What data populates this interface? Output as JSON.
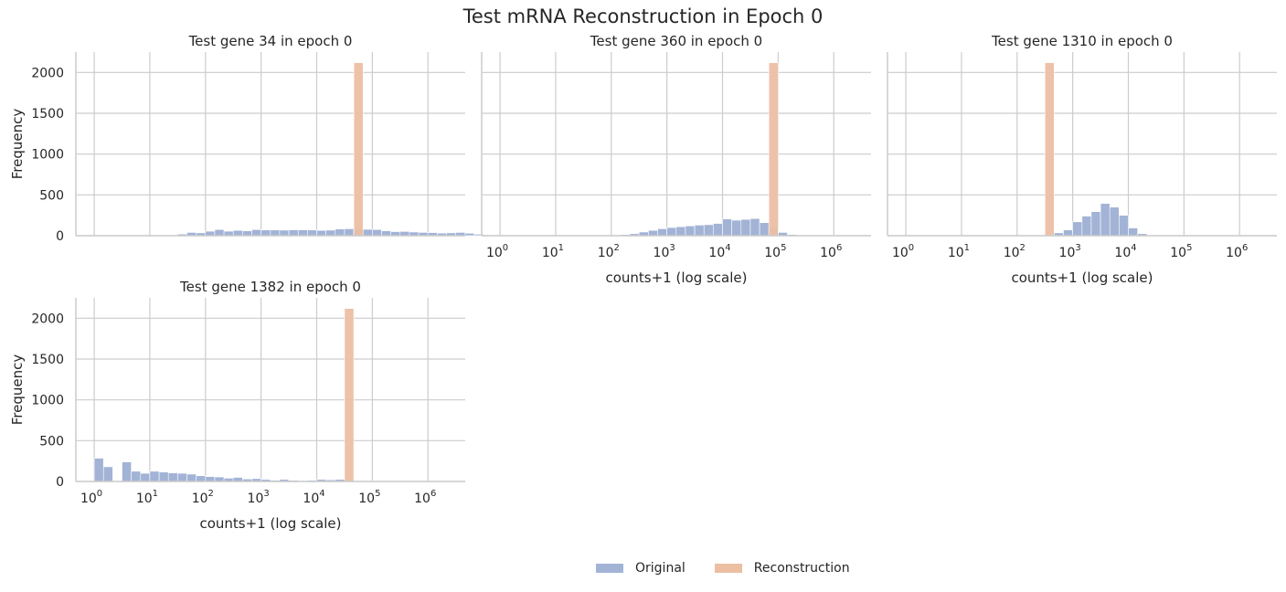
{
  "figure": {
    "title": "Test mRNA Reconstruction in Epoch 0",
    "legend": [
      {
        "label": "Original",
        "color": "#a2b3d6"
      },
      {
        "label": "Reconstruction",
        "color": "#ecbfa3"
      }
    ]
  },
  "chart_data": [
    {
      "type": "histogram",
      "title": "Test gene 34 in epoch 0",
      "ylabel": "Frequency",
      "xlabel": "",
      "xscale": "log",
      "ylim": [
        0,
        2250
      ],
      "yticks": [
        "0",
        "500",
        "1000",
        "1500",
        "2000"
      ],
      "xticks": [],
      "grid": true,
      "bin_log_width": 0.1667,
      "series": [
        {
          "name": "Original",
          "bins": [
            [
              1.0,
              0
            ],
            [
              1.5,
              20
            ],
            [
              1.667,
              40
            ],
            [
              1.833,
              35
            ],
            [
              2.0,
              55
            ],
            [
              2.167,
              75
            ],
            [
              2.333,
              55
            ],
            [
              2.5,
              65
            ],
            [
              2.667,
              60
            ],
            [
              2.833,
              75
            ],
            [
              3.0,
              70
            ],
            [
              3.167,
              70
            ],
            [
              3.333,
              68
            ],
            [
              3.5,
              72
            ],
            [
              3.667,
              72
            ],
            [
              3.833,
              70
            ],
            [
              4.0,
              65
            ],
            [
              4.167,
              68
            ],
            [
              4.333,
              82
            ],
            [
              4.5,
              85
            ],
            [
              4.667,
              80
            ],
            [
              4.833,
              78
            ],
            [
              5.0,
              75
            ],
            [
              5.167,
              60
            ],
            [
              5.333,
              50
            ],
            [
              5.5,
              52
            ],
            [
              5.667,
              45
            ],
            [
              5.833,
              40
            ],
            [
              6.0,
              38
            ],
            [
              6.167,
              32
            ],
            [
              6.333,
              35
            ],
            [
              6.5,
              40
            ],
            [
              6.667,
              30
            ],
            [
              6.833,
              18
            ],
            [
              7.0,
              10
            ],
            [
              7.167,
              8
            ],
            [
              7.333,
              8
            ]
          ]
        },
        {
          "name": "Reconstruction",
          "bins": [
            [
              4.667,
              2120
            ]
          ]
        }
      ]
    },
    {
      "type": "histogram",
      "title": "Test gene 360 in epoch 0",
      "ylabel": "",
      "xlabel": "counts+1 (log scale)",
      "xscale": "log",
      "ylim": [
        0,
        2250
      ],
      "yticks": [],
      "xticks": [
        "10^0",
        "10^1",
        "10^2",
        "10^3",
        "10^4",
        "10^5",
        "10^6"
      ],
      "grid": true,
      "bin_log_width": 0.1667,
      "series": [
        {
          "name": "Original",
          "bins": [
            [
              2.167,
              15
            ],
            [
              2.333,
              25
            ],
            [
              2.5,
              45
            ],
            [
              2.667,
              65
            ],
            [
              2.833,
              85
            ],
            [
              3.0,
              100
            ],
            [
              3.167,
              110
            ],
            [
              3.333,
              120
            ],
            [
              3.5,
              130
            ],
            [
              3.667,
              135
            ],
            [
              3.833,
              150
            ],
            [
              4.0,
              205
            ],
            [
              4.167,
              190
            ],
            [
              4.333,
              200
            ],
            [
              4.5,
              210
            ],
            [
              4.667,
              160
            ],
            [
              4.833,
              100
            ],
            [
              5.0,
              40
            ],
            [
              5.167,
              15
            ],
            [
              5.333,
              8
            ],
            [
              5.5,
              5
            ],
            [
              5.667,
              5
            ],
            [
              5.833,
              4
            ],
            [
              6.0,
              3
            ],
            [
              6.167,
              3
            ],
            [
              6.333,
              3
            ],
            [
              6.5,
              3
            ]
          ]
        },
        {
          "name": "Reconstruction",
          "bins": [
            [
              4.833,
              2120
            ]
          ]
        }
      ]
    },
    {
      "type": "histogram",
      "title": "Test gene 1310 in epoch 0",
      "ylabel": "",
      "xlabel": "counts+1 (log scale)",
      "xscale": "log",
      "ylim": [
        0,
        2250
      ],
      "yticks": [],
      "xticks": [
        "10^0",
        "10^1",
        "10^2",
        "10^3",
        "10^4",
        "10^5",
        "10^6"
      ],
      "grid": true,
      "bin_log_width": 0.1667,
      "series": [
        {
          "name": "Original",
          "bins": [
            [
              2.667,
              35
            ],
            [
              2.833,
              70
            ],
            [
              3.0,
              170
            ],
            [
              3.167,
              240
            ],
            [
              3.333,
              295
            ],
            [
              3.5,
              395
            ],
            [
              3.667,
              350
            ],
            [
              3.833,
              250
            ],
            [
              4.0,
              95
            ],
            [
              4.167,
              25
            ],
            [
              4.333,
              5
            ],
            [
              4.5,
              3
            ],
            [
              4.667,
              3
            ],
            [
              4.833,
              3
            ],
            [
              5.0,
              3
            ],
            [
              5.167,
              3
            ],
            [
              5.333,
              3
            ],
            [
              5.5,
              3
            ],
            [
              5.667,
              3
            ],
            [
              5.833,
              3
            ],
            [
              6.0,
              3
            ],
            [
              6.167,
              3
            ],
            [
              6.333,
              3
            ],
            [
              6.5,
              3
            ]
          ]
        },
        {
          "name": "Reconstruction",
          "bins": [
            [
              2.5,
              2120
            ]
          ]
        }
      ]
    },
    {
      "type": "histogram",
      "title": "Test gene 1382 in epoch 0",
      "ylabel": "Frequency",
      "xlabel": "counts+1 (log scale)",
      "xscale": "log",
      "ylim": [
        0,
        2250
      ],
      "yticks": [
        "0",
        "500",
        "1000",
        "1500",
        "2000"
      ],
      "xticks": [
        "10^0",
        "10^1",
        "10^2",
        "10^3",
        "10^4",
        "10^5",
        "10^6"
      ],
      "grid": true,
      "bin_log_width": 0.1667,
      "series": [
        {
          "name": "Original",
          "bins": [
            [
              0.0,
              285
            ],
            [
              0.167,
              180
            ],
            [
              0.5,
              240
            ],
            [
              0.667,
              125
            ],
            [
              0.833,
              100
            ],
            [
              1.0,
              125
            ],
            [
              1.167,
              115
            ],
            [
              1.333,
              105
            ],
            [
              1.5,
              100
            ],
            [
              1.667,
              90
            ],
            [
              1.833,
              70
            ],
            [
              2.0,
              60
            ],
            [
              2.167,
              55
            ],
            [
              2.333,
              40
            ],
            [
              2.5,
              50
            ],
            [
              2.667,
              30
            ],
            [
              2.833,
              35
            ],
            [
              3.0,
              25
            ],
            [
              3.167,
              15
            ],
            [
              3.333,
              25
            ],
            [
              3.5,
              15
            ],
            [
              3.667,
              10
            ],
            [
              3.833,
              15
            ],
            [
              4.0,
              25
            ],
            [
              4.167,
              20
            ],
            [
              4.333,
              25
            ],
            [
              4.5,
              15
            ],
            [
              4.667,
              10
            ],
            [
              4.833,
              8
            ],
            [
              5.0,
              5
            ],
            [
              5.167,
              5
            ],
            [
              5.333,
              5
            ],
            [
              5.5,
              5
            ],
            [
              5.667,
              3
            ],
            [
              5.833,
              3
            ],
            [
              6.0,
              3
            ],
            [
              6.167,
              3
            ],
            [
              6.333,
              3
            ],
            [
              6.5,
              3
            ]
          ]
        },
        {
          "name": "Reconstruction",
          "bins": [
            [
              4.5,
              2120
            ]
          ]
        }
      ]
    }
  ]
}
